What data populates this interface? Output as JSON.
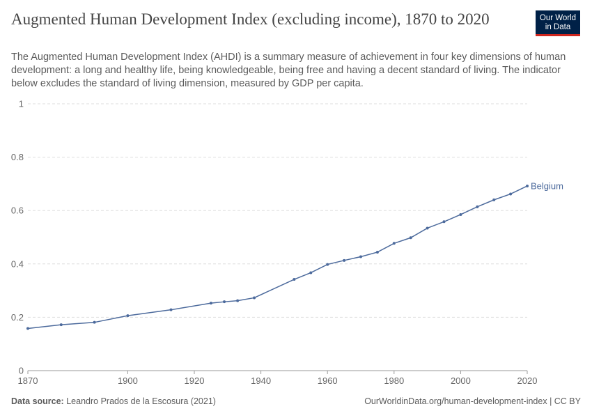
{
  "header": {
    "title": "Augmented Human Development Index (excluding income), 1870 to 2020",
    "subtitle": "The Augmented Human Development Index (AHDI) is a summary measure of achievement in four key dimensions of human development: a long and healthy life, being knowledgeable, being free and having a decent standard of living. The indicator below excludes the standard of living dimension, measured by GDP per capita."
  },
  "logo": {
    "line1": "Our World",
    "line2": "in Data"
  },
  "footer": {
    "source_label": "Data source:",
    "source_text": "Leandro Prados de la Escosura (2021)",
    "credit": "OurWorldinData.org/human-development-index | CC BY"
  },
  "colors": {
    "series": "#4c6a9c",
    "grid": "#dddddd",
    "text": "#5b5b5b"
  },
  "chart_data": {
    "type": "line",
    "title": "Augmented Human Development Index (excluding income), 1870 to 2020",
    "xlim": [
      1870,
      2020
    ],
    "ylim": [
      0,
      1
    ],
    "xticks": [
      1870,
      1900,
      1920,
      1940,
      1960,
      1980,
      2000,
      2020
    ],
    "yticks": [
      0,
      0.2,
      0.4,
      0.6,
      0.8,
      1
    ],
    "ytick_labels": [
      "0",
      "0.2",
      "0.4",
      "0.6",
      "0.8",
      "1"
    ],
    "grid": true,
    "series": [
      {
        "name": "Belgium",
        "x": [
          1870,
          1880,
          1890,
          1900,
          1913,
          1925,
          1929,
          1933,
          1938,
          1950,
          1955,
          1960,
          1965,
          1970,
          1975,
          1980,
          1985,
          1990,
          1995,
          2000,
          2005,
          2010,
          2015,
          2020
        ],
        "y": [
          0.158,
          0.172,
          0.181,
          0.206,
          0.228,
          0.253,
          0.258,
          0.262,
          0.273,
          0.342,
          0.367,
          0.398,
          0.413,
          0.427,
          0.444,
          0.477,
          0.498,
          0.534,
          0.558,
          0.585,
          0.614,
          0.64,
          0.662,
          0.692
        ]
      }
    ]
  }
}
